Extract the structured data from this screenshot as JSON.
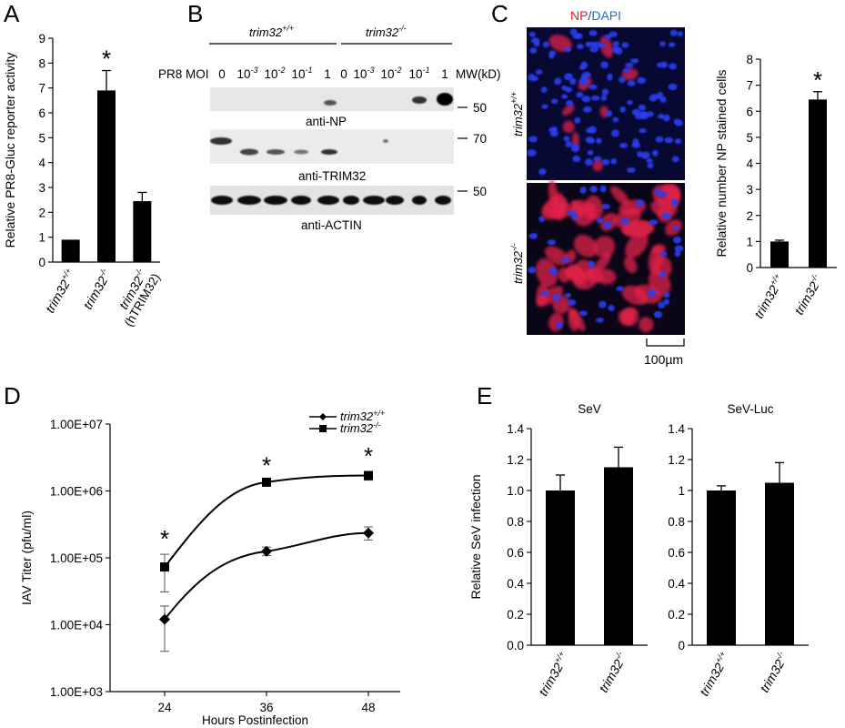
{
  "panels": {
    "A": {
      "label": "A"
    },
    "B": {
      "label": "B"
    },
    "C": {
      "label": "C"
    },
    "D": {
      "label": "D"
    },
    "E": {
      "label": "E"
    }
  },
  "blot": {
    "group_wt": "trim32",
    "group_wt_sup": "+/+",
    "group_ko": "trim32",
    "group_ko_sup": "-/-",
    "moi_label": "PR8 MOI",
    "moi_values": [
      "0",
      "10",
      "10",
      "10",
      "1",
      "0",
      "10",
      "10",
      "10",
      "1"
    ],
    "moi_exps": [
      "",
      "-3",
      "-2",
      "-1",
      "",
      "",
      "-3",
      "-2",
      "-1",
      ""
    ],
    "mw_label": "MW(kD)",
    "mw_np": "50",
    "mw_trim32": "70",
    "mw_actin": "50",
    "band_np": "anti-NP",
    "band_trim32": "anti-TRIM32",
    "band_actin": "anti-ACTIN"
  },
  "micrograph": {
    "title_np": "NP",
    "title_sep": "/",
    "title_dapi": "DAPI",
    "row_wt": "trim32",
    "row_wt_sup": "+/+",
    "row_ko": "trim32",
    "row_ko_sup": "-/-",
    "scale_bar": "100µm"
  },
  "chart_data": [
    {
      "panel": "A",
      "type": "bar",
      "categories": [
        {
          "name": "trim32",
          "sup": "+/+",
          "extra": ""
        },
        {
          "name": "trim32",
          "sup": "-/-",
          "extra": ""
        },
        {
          "name": "trim32",
          "sup": "-/-",
          "extra": "(hTRIM32)"
        }
      ],
      "values": [
        0.9,
        6.9,
        2.45
      ],
      "errors": [
        0,
        0.8,
        0.35
      ],
      "significance": [
        "",
        "*",
        ""
      ],
      "ylabel": "Relative PR8-Gluc reporter activity",
      "ylim": [
        0,
        9
      ],
      "yticks": [
        "0",
        "1",
        "2",
        "3",
        "4",
        "5",
        "6",
        "7",
        "8",
        "9"
      ],
      "bar_color": "#000000"
    },
    {
      "panel": "C",
      "type": "bar",
      "categories": [
        {
          "name": "trim32",
          "sup": "+/+"
        },
        {
          "name": "trim32",
          "sup": "-/-"
        }
      ],
      "values": [
        1.0,
        6.45
      ],
      "errors": [
        0.05,
        0.3
      ],
      "significance": [
        "",
        "*"
      ],
      "ylabel": "Relative number NP stained cells",
      "ylim": [
        0,
        8
      ],
      "yticks": [
        "0",
        "1",
        "2",
        "3",
        "4",
        "5",
        "6",
        "7",
        "8"
      ],
      "bar_color": "#000000"
    },
    {
      "panel": "D",
      "type": "line",
      "x": [
        24,
        36,
        48
      ],
      "xticks": [
        "24",
        "36",
        "48"
      ],
      "xlabel": "Hours Postinfection",
      "ylabel": "IAV Titer (pfu/ml)",
      "yscale": "log",
      "ylim": [
        1000,
        10000000
      ],
      "yticks": [
        "1.00E+03",
        "1.00E+04",
        "1.00E+05",
        "1.00E+06",
        "1.00E+07"
      ],
      "series": [
        {
          "name": "trim32",
          "sup": "+/+",
          "marker": "diamond",
          "values": [
            12000,
            125000,
            235000
          ],
          "err_low": [
            4000,
            108000,
            185000
          ],
          "err_high": [
            19000,
            145000,
            290000
          ]
        },
        {
          "name": "trim32",
          "sup": "-/-",
          "marker": "square",
          "values": [
            73000,
            1350000,
            1700000
          ],
          "err_low": [
            31000,
            1280000,
            1450000
          ],
          "err_high": [
            113000,
            1420000,
            1950000
          ]
        }
      ],
      "significance": [
        "*",
        "*",
        "*"
      ],
      "legend_position": "top-right"
    },
    {
      "panel": "E1",
      "type": "bar",
      "title": "SeV",
      "categories": [
        {
          "name": "trim32",
          "sup": "+/+"
        },
        {
          "name": "trim32",
          "sup": "-/-"
        }
      ],
      "values": [
        1.0,
        1.15
      ],
      "errors": [
        0.1,
        0.13
      ],
      "ylabel": "Relative SeV infection",
      "ylim": [
        0,
        1.4
      ],
      "yticks": [
        "0.0",
        "0.2",
        "0.4",
        "0.6",
        "0.8",
        "1.0",
        "1.2",
        "1.4"
      ],
      "bar_color": "#000000"
    },
    {
      "panel": "E2",
      "type": "bar",
      "title": "SeV-Luc",
      "categories": [
        {
          "name": "trim32",
          "sup": "+/+"
        },
        {
          "name": "trim32",
          "sup": "-/-"
        }
      ],
      "values": [
        1.0,
        1.05
      ],
      "errors": [
        0.03,
        0.13
      ],
      "ylim": [
        0,
        1.4
      ],
      "yticks": [
        "0",
        "0.2",
        "0.4",
        "0.6",
        "0.8",
        "1",
        "1.2",
        "1.4"
      ],
      "bar_color": "#000000"
    }
  ]
}
